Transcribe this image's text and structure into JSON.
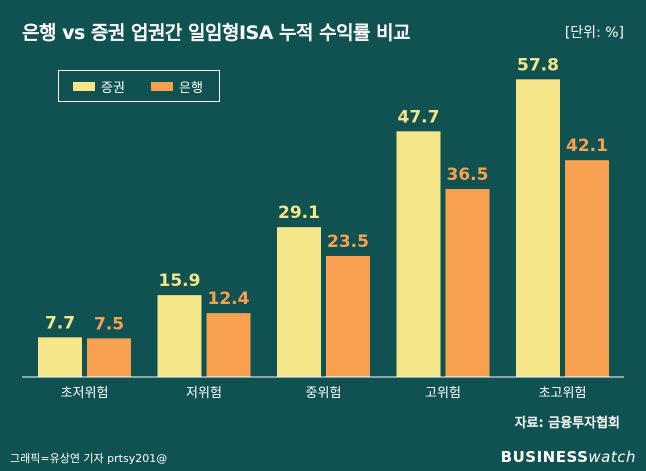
{
  "header": {
    "title": "은행 vs 증권 업권간 일임형ISA 누적 수익률 비교",
    "unit": "[단위: %]"
  },
  "footer": {
    "source": "자료: 금융투자협회",
    "credit": "그래픽=유상연 기자 prtsy201@",
    "brand_main": "BUSINESS",
    "brand_sub": "watch"
  },
  "colors": {
    "background": "#0f5251",
    "securities": "#f5e68a",
    "bank": "#f7a050",
    "label_securities": "#f5e68a",
    "label_bank": "#f7a050"
  },
  "chart_data": {
    "type": "bar",
    "title": "은행 vs 증권 업권간 일임형ISA 누적 수익률 비교",
    "categories": [
      "초저위험",
      "저위험",
      "중위험",
      "고위험",
      "초고위험"
    ],
    "series": [
      {
        "name": "증권",
        "values": [
          7.7,
          15.9,
          29.1,
          47.7,
          57.8
        ]
      },
      {
        "name": "은행",
        "values": [
          7.5,
          12.4,
          23.5,
          36.5,
          42.1
        ]
      }
    ],
    "ylim": [
      0,
      60
    ],
    "grid": false,
    "legend": "top-left"
  }
}
